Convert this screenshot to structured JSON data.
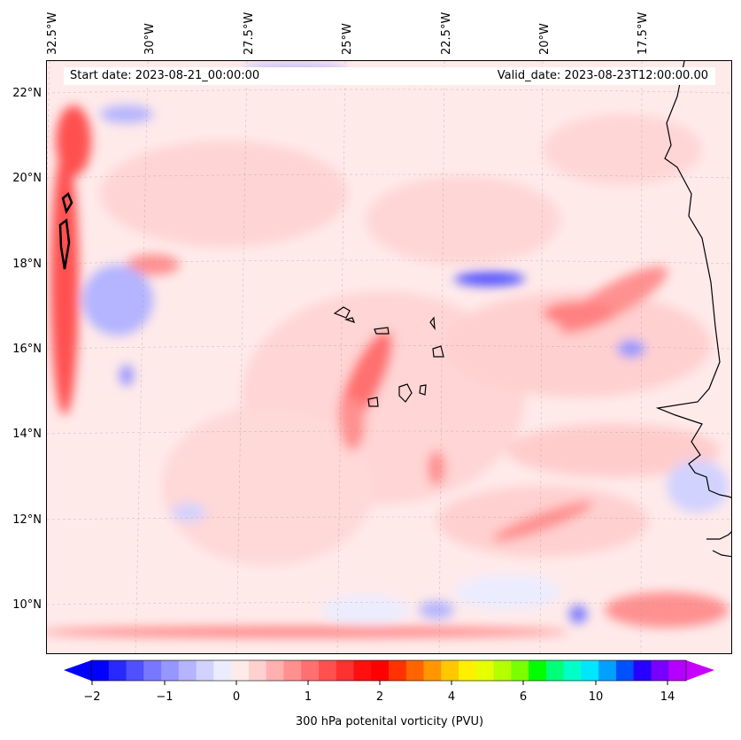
{
  "map": {
    "longitude_labels": [
      "32.5°W",
      "30°W",
      "27.5°W",
      "25°W",
      "22.5°W",
      "20°W",
      "17.5°W"
    ],
    "latitude_labels": [
      "22°N",
      "20°N",
      "18°N",
      "16°N",
      "14°N",
      "12°N",
      "10°N"
    ],
    "start_date": "Start date: 2023-08-21_00:00:00",
    "valid_date": "Valid_date: 2023-08-23T12:00:00.00"
  },
  "colorbar": {
    "tick_labels": [
      "−2",
      "−1",
      "0",
      "1",
      "2",
      "4",
      "6",
      "10",
      "14"
    ],
    "label": "300 hPa potenital vorticity (PVU)",
    "colors": [
      "#0000ff",
      "#2828ff",
      "#5050ff",
      "#7878ff",
      "#9696ff",
      "#b4b4ff",
      "#d2d2ff",
      "#ececff",
      "#ffeaea",
      "#ffd0d0",
      "#ffb0b0",
      "#ff9090",
      "#ff7070",
      "#ff5050",
      "#ff3030",
      "#ff1010",
      "#ff0000",
      "#ff3200",
      "#ff6400",
      "#ff9600",
      "#ffc800",
      "#fff000",
      "#e6ff00",
      "#b4ff00",
      "#78ff00",
      "#00ff00",
      "#00ff78",
      "#00ffc8",
      "#00e6ff",
      "#00a0ff",
      "#0050ff",
      "#2800ff",
      "#7800ff",
      "#b400ff"
    ],
    "extend_low": "#0000ff",
    "extend_high": "#c800ff"
  }
}
